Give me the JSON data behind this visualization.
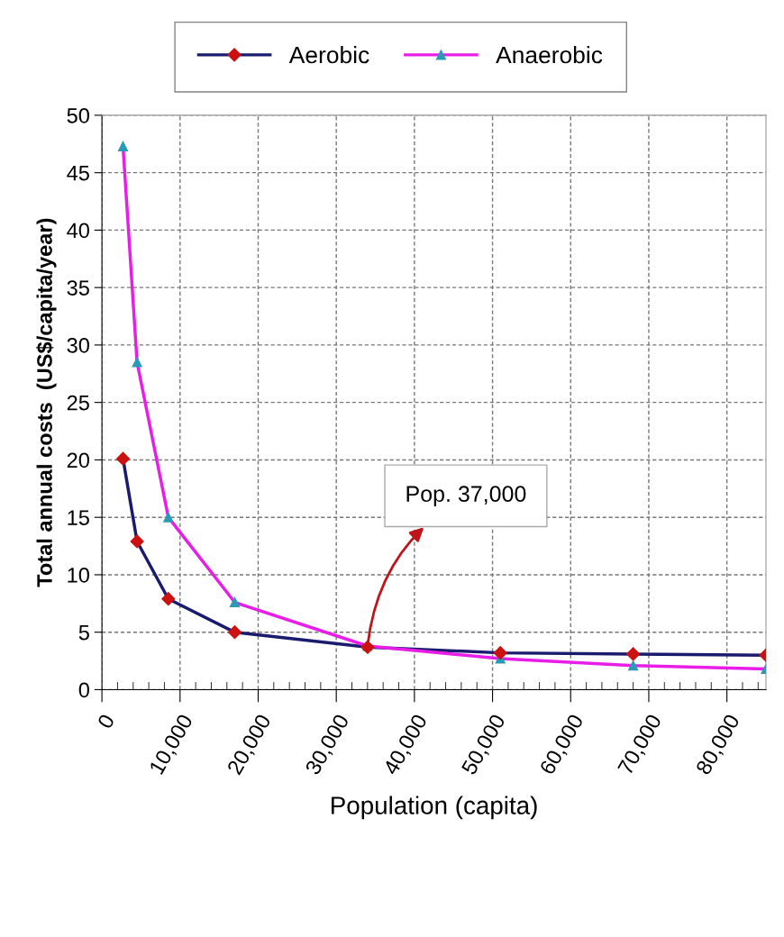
{
  "chart_data": {
    "type": "line",
    "xlabel": "Population (capita)",
    "ylabel": "Total annual costs  (US$/capita/year)",
    "x": [
      2700,
      4500,
      8500,
      17000,
      34000,
      51000,
      68000,
      85000
    ],
    "series": [
      {
        "name": "Aerobic",
        "color": "#1a1a6e",
        "marker": "diamond",
        "values": [
          20.1,
          12.9,
          7.9,
          5.0,
          3.7,
          3.2,
          3.1,
          3.0
        ]
      },
      {
        "name": "Anaerobic",
        "color": "#e81ee8",
        "marker": "triangle",
        "values": [
          47.3,
          28.5,
          15.0,
          7.6,
          3.8,
          2.7,
          2.1,
          1.8
        ]
      }
    ],
    "xlim": [
      0,
      85000
    ],
    "ylim": [
      0,
      50
    ],
    "xticks": [
      {
        "value": 0,
        "label": "0"
      },
      {
        "value": 10000,
        "label": "10,000"
      },
      {
        "value": 20000,
        "label": "20,000"
      },
      {
        "value": 30000,
        "label": "30,000"
      },
      {
        "value": 40000,
        "label": "40,000"
      },
      {
        "value": 50000,
        "label": "50,000"
      },
      {
        "value": 60000,
        "label": "60,000"
      },
      {
        "value": 70000,
        "label": "70,000"
      },
      {
        "value": 80000,
        "label": "80,000"
      }
    ],
    "yticks": [
      0,
      5,
      10,
      15,
      20,
      25,
      30,
      35,
      40,
      45,
      50
    ],
    "grid": true,
    "legend": "top",
    "annotations": [
      {
        "text": "Pop. 37,000",
        "x": 34000,
        "y": 3.8
      }
    ]
  }
}
